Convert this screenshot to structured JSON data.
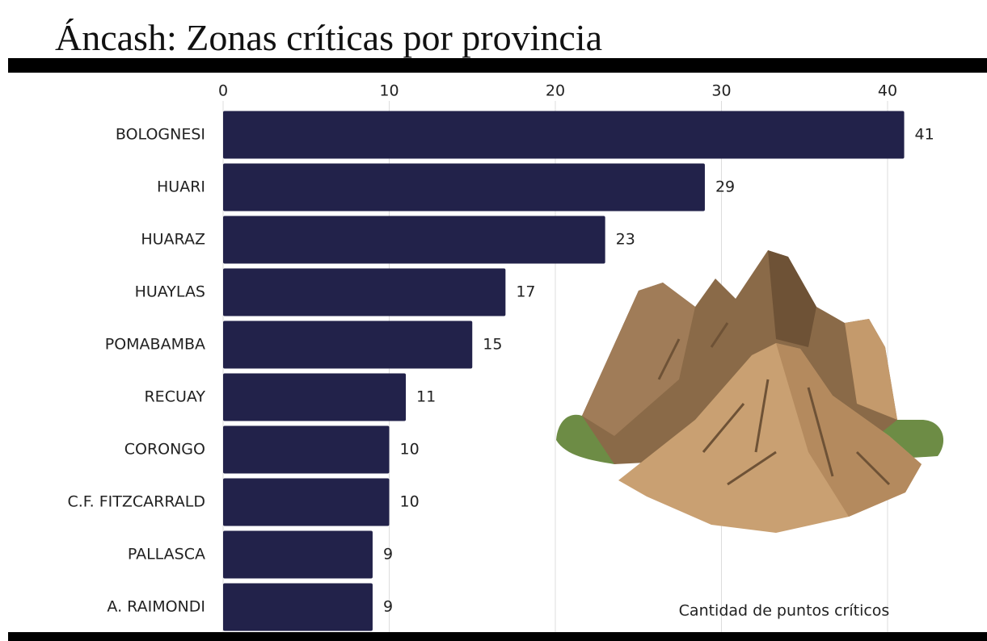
{
  "chart_data": {
    "type": "bar",
    "orientation": "horizontal",
    "title": "Áncash: Zonas críticas por provincia",
    "x_label": "Cantidad de puntos críticos",
    "categories": [
      "BOLOGNESI",
      "HUARI",
      "HUARAZ",
      "HUAYLAS",
      "POMABAMBA",
      "RECUAY",
      "CORONGO",
      "C.F. FITZCARRALD",
      "PALLASCA",
      "A. RAIMONDI"
    ],
    "values": [
      41,
      29,
      23,
      17,
      15,
      11,
      10,
      10,
      9,
      9
    ],
    "color": "#22224a",
    "xlim": [
      0,
      42
    ],
    "xticks": [
      0,
      10,
      20,
      30,
      40
    ],
    "grid": true
  }
}
